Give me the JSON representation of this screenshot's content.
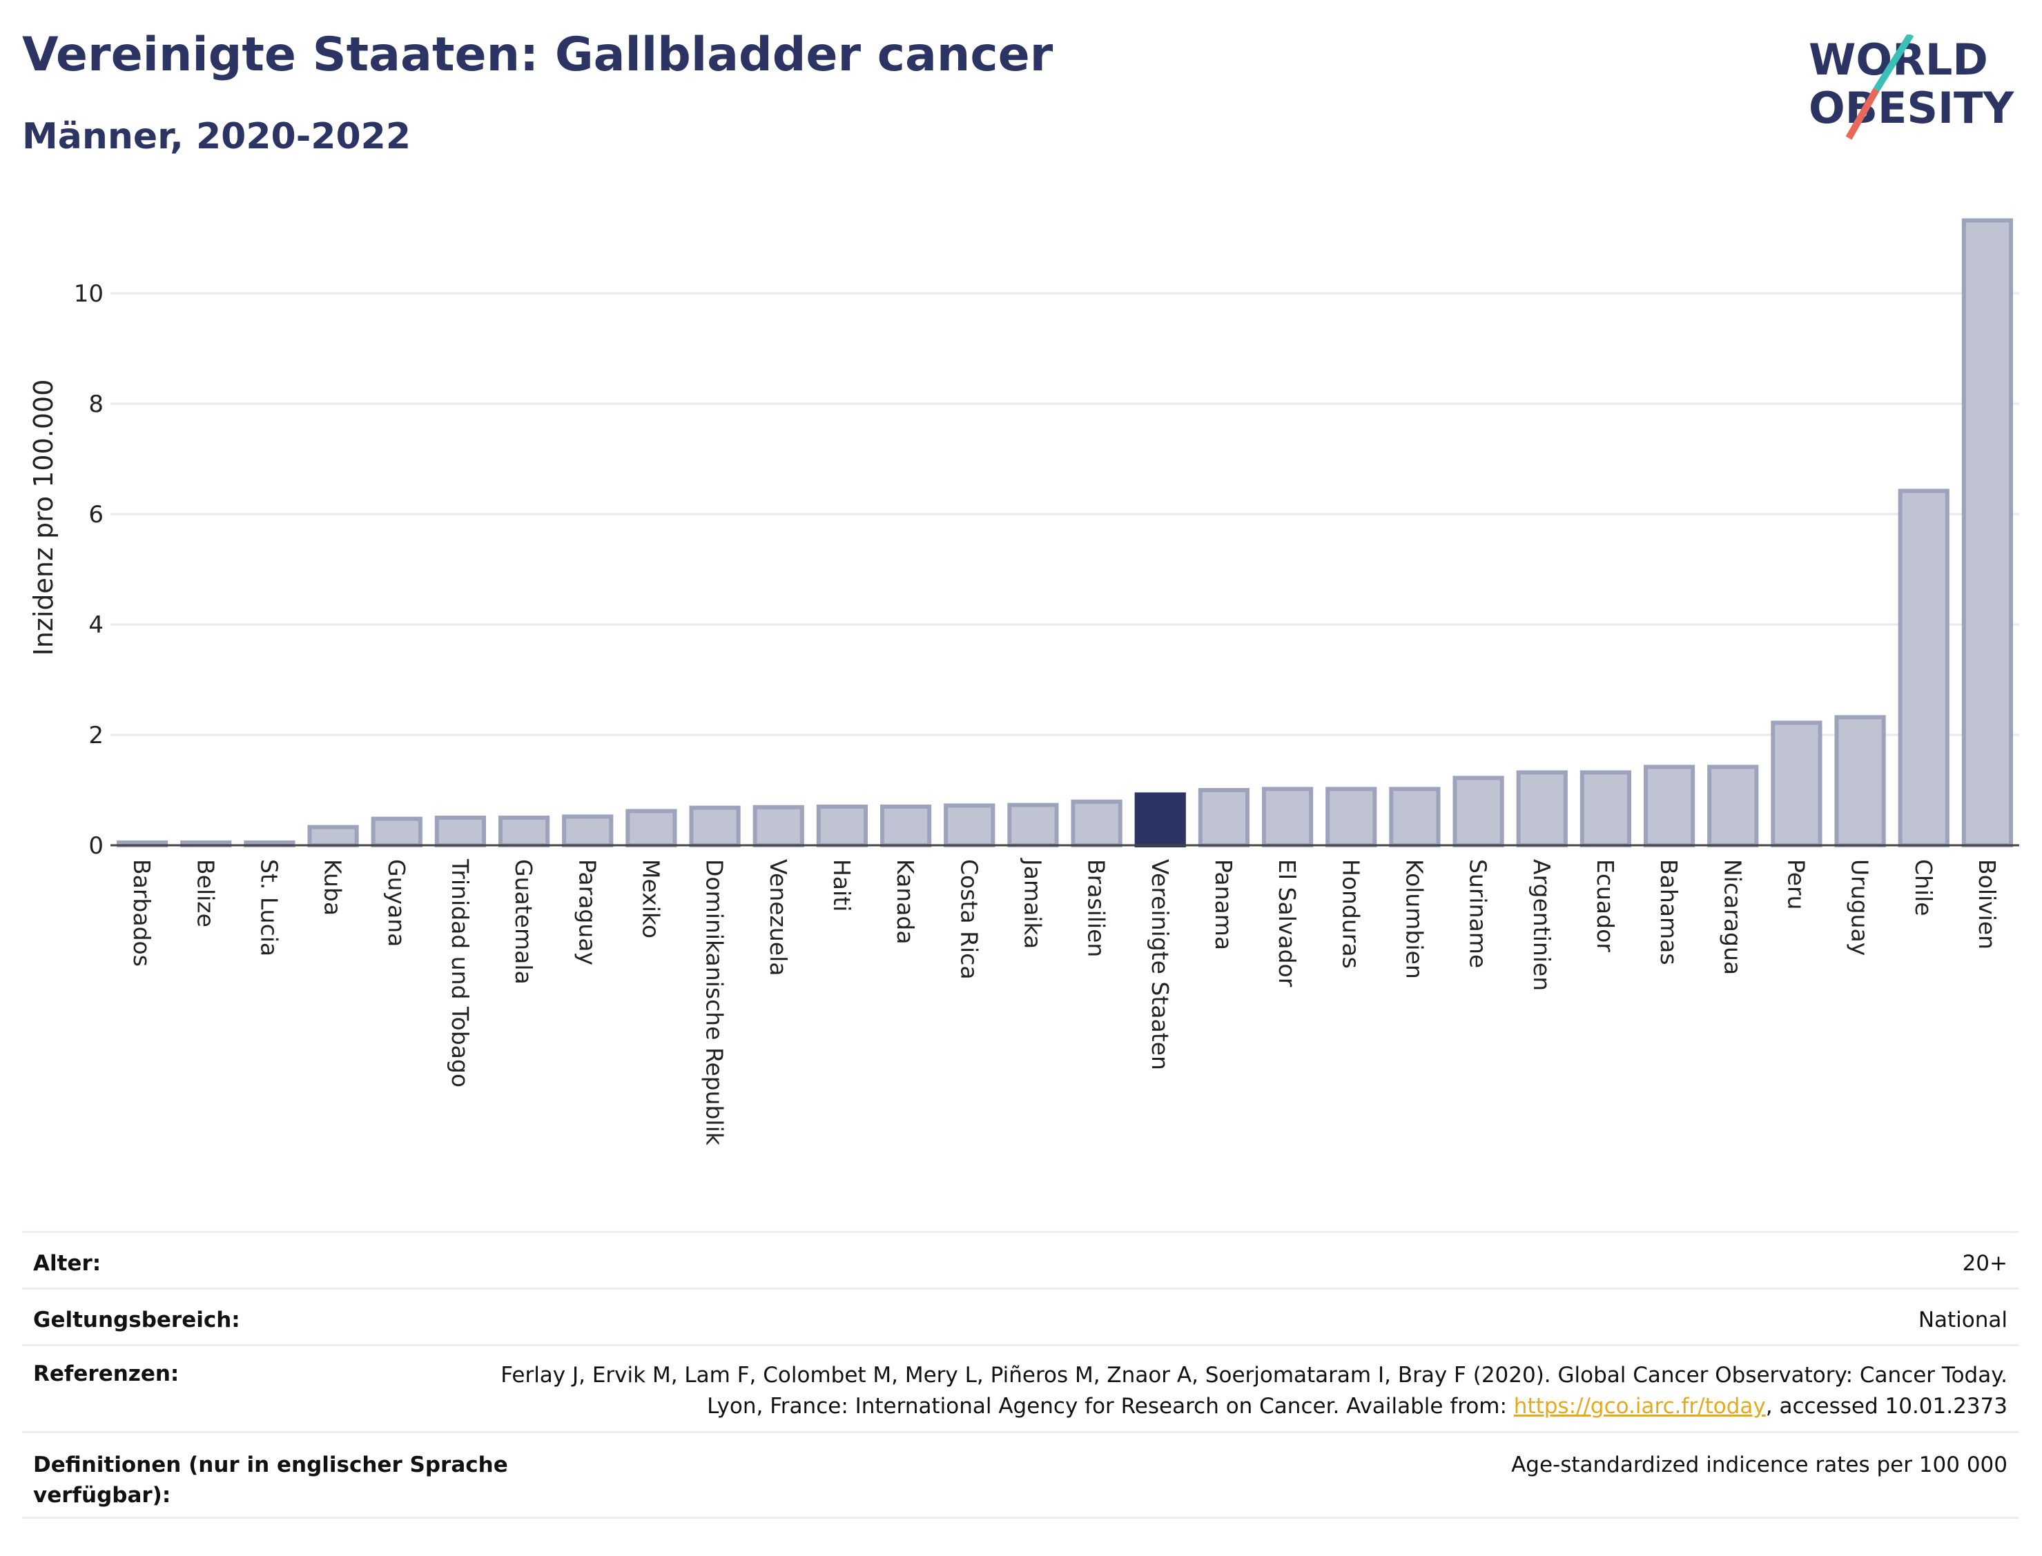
{
  "header": {
    "title": "Vereinigte Staaten: Gallbladder cancer",
    "subtitle": "Männer, 2020-2022"
  },
  "logo": {
    "line1": "WORLD",
    "line2": "OBESITY",
    "colors": {
      "text": "#2b3463",
      "slash_top": "#3bbfb6",
      "slash_bottom": "#e8685a"
    }
  },
  "colors": {
    "highlight": "#2b3463",
    "bar_fill": "#bfc3d2",
    "bar_stroke": "#9ea3bd",
    "grid": "#e8e9f0"
  },
  "chart_data": {
    "type": "bar",
    "ylabel": "Inzidenz pro 100.000",
    "ylim": [
      0,
      11.5
    ],
    "yticks": [
      0,
      2,
      4,
      6,
      8,
      10
    ],
    "grid": true,
    "highlight": "Vereinigte Staaten",
    "categories": [
      "Barbados",
      "Belize",
      "St. Lucia",
      "Kuba",
      "Guyana",
      "Trinidad und Tobago",
      "Guatemala",
      "Paraguay",
      "Mexiko",
      "Dominikanische Republik",
      "Venezuela",
      "Haiti",
      "Kanada",
      "Costa Rica",
      "Jamaika",
      "Brasilien",
      "Vereinigte Staaten",
      "Panama",
      "El Salvador",
      "Honduras",
      "Kolumbien",
      "Suriname",
      "Argentinien",
      "Ecuador",
      "Bahamas",
      "Nicaragua",
      "Peru",
      "Uruguay",
      "Chile",
      "Bolivien"
    ],
    "values": [
      0.05,
      0.05,
      0.05,
      0.33,
      0.48,
      0.5,
      0.5,
      0.52,
      0.62,
      0.68,
      0.69,
      0.7,
      0.7,
      0.72,
      0.73,
      0.79,
      0.92,
      1.0,
      1.02,
      1.02,
      1.02,
      1.22,
      1.32,
      1.32,
      1.42,
      1.42,
      2.22,
      2.32,
      6.42,
      11.32
    ]
  },
  "meta": {
    "age_label": "Alter:",
    "age_value": "20+",
    "scope_label": "Geltungsbereich:",
    "scope_value": "National",
    "ref_label": "Referenzen:",
    "ref_text_1": "Ferlay J, Ervik M, Lam F, Colombet M, Mery L, Piñeros M, Znaor A, Soerjomataram I, Bray F (2020). Global Cancer Observatory: Cancer Today. Lyon, France: International Agency for Research on Cancer. Available from: ",
    "ref_link": "https://gco.iarc.fr/today",
    "ref_text_2": ", accessed 10.01.2373",
    "def_label": "Definitionen (nur in englischer Sprache verfügbar):",
    "def_value": "Age-standardized indicence rates per 100 000"
  }
}
